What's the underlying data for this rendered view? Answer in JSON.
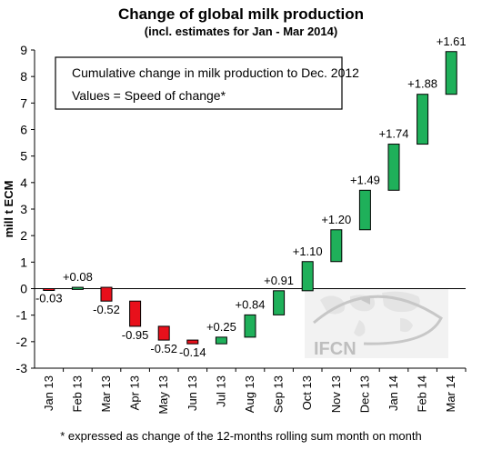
{
  "chart_data": {
    "type": "waterfall",
    "title": "Change of global milk production",
    "subtitle": "(incl. estimates for Jan - Mar 2014)",
    "ylabel": "mill t ECM",
    "xlabel": "",
    "ylim": [
      -3,
      9
    ],
    "yticks": [
      -3,
      -2,
      -1,
      0,
      1,
      2,
      3,
      4,
      5,
      6,
      7,
      8,
      9
    ],
    "categories": [
      "Jan 13",
      "Feb 13",
      "Mar 13",
      "Apr 13",
      "May 13",
      "Jun 13",
      "Jul 13",
      "Aug 13",
      "Sep 13",
      "Oct 13",
      "Nov 13",
      "Dec 13",
      "Jan 14",
      "Feb 14",
      "Mar 14"
    ],
    "values": [
      -0.03,
      0.08,
      -0.52,
      -0.95,
      -0.52,
      -0.14,
      0.25,
      0.84,
      0.91,
      1.1,
      1.2,
      1.49,
      1.74,
      1.88,
      1.61
    ],
    "labels": [
      "-0.03",
      "+0.08",
      "-0.52",
      "-0.95",
      "-0.52",
      "-0.14",
      "+0.25",
      "+0.84",
      "+0.91",
      "+1.10",
      "+1.20",
      "+1.49",
      "+1.74",
      "+1.88",
      "+1.61"
    ],
    "start_value": 0,
    "legend": {
      "lines": [
        "Cumulative change in milk production to Dec. 2012",
        "Values = Speed of change*"
      ],
      "placement": "top-left"
    },
    "footnote": "* expressed as change of the 12-months rolling sum month on month",
    "watermark": "IFCN",
    "colors": {
      "positive": "#1fb05a",
      "negative": "#e8101b",
      "border": "#000000"
    },
    "grid": false
  }
}
